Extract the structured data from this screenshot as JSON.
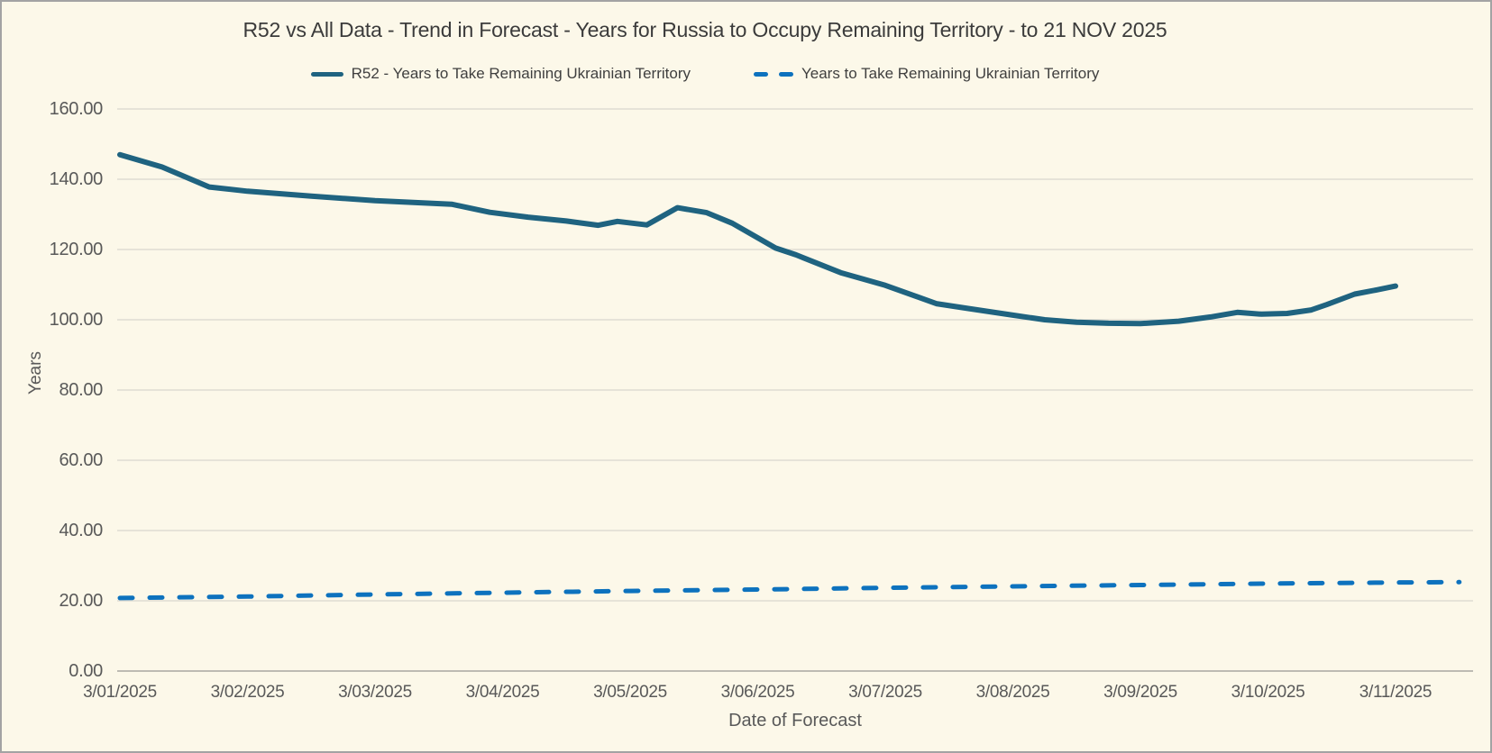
{
  "title": "R52 vs All Data  - Trend in Forecast - Years for Russia to Occupy Remaining Territory - to 21 NOV 2025",
  "legend": [
    {
      "label": "R52 - Years to Take Remaining Ukrainian Territory",
      "style": "solid",
      "color": "#1F6380"
    },
    {
      "label": "Years to Take Remaining Ukrainian Territory",
      "style": "dashed",
      "color": "#0D72BE"
    }
  ],
  "colors": {
    "background": "#FCF8E9",
    "frame_border": "#A3A3A3",
    "grid": "#D8D6CE",
    "axis_line": "#BDBBB3",
    "tick_text": "#595959",
    "title_text": "#3B3B3B",
    "legend_text": "#3F3F3F",
    "r52_line": "#1F6380",
    "all_data_line": "#0D72BE"
  },
  "chart_data": {
    "type": "line",
    "title": "R52 vs All Data  - Trend in Forecast - Years for Russia to Occupy Remaining Territory - to 21 NOV 2025",
    "xlabel": "Date of Forecast",
    "ylabel": "Years",
    "ylim": [
      0,
      160
    ],
    "ytick_step": 20,
    "y_tick_labels": [
      "0.00",
      "20.00",
      "40.00",
      "60.00",
      "80.00",
      "100.00",
      "120.00",
      "140.00",
      "160.00"
    ],
    "grid": true,
    "legend_position": "top",
    "categories": [
      "3/01/2025",
      "3/02/2025",
      "3/03/2025",
      "3/04/2025",
      "3/05/2025",
      "3/06/2025",
      "3/07/2025",
      "3/08/2025",
      "3/09/2025",
      "3/10/2025",
      "3/11/2025"
    ],
    "x_unit": "tick index: 0 = 3/01/2025 ... 10 = 3/11/2025 (fractional = between labeled ticks)",
    "series": [
      {
        "name": "R52 - Years to Take Remaining Ukrainian Territory",
        "color": "#1F6380",
        "dash": "solid",
        "stroke_width": 6,
        "points": [
          [
            0,
            147.0
          ],
          [
            0.33,
            143.5
          ],
          [
            0.7,
            137.8
          ],
          [
            1,
            136.6
          ],
          [
            1.5,
            135.2
          ],
          [
            2,
            133.9
          ],
          [
            2.3,
            133.4
          ],
          [
            2.6,
            132.9
          ],
          [
            2.9,
            130.6
          ],
          [
            3.2,
            129.2
          ],
          [
            3.5,
            128.1
          ],
          [
            3.75,
            126.9
          ],
          [
            3.9,
            128.0
          ],
          [
            4.13,
            127.0
          ],
          [
            4.37,
            131.9
          ],
          [
            4.6,
            130.5
          ],
          [
            4.8,
            127.5
          ],
          [
            5.14,
            120.4
          ],
          [
            5.3,
            118.5
          ],
          [
            5.65,
            113.4
          ],
          [
            6,
            109.8
          ],
          [
            6.4,
            104.6
          ],
          [
            6.65,
            103.2
          ],
          [
            7,
            101.3
          ],
          [
            7.25,
            100.0
          ],
          [
            7.5,
            99.3
          ],
          [
            7.75,
            99.0
          ],
          [
            8,
            98.9
          ],
          [
            8.3,
            99.6
          ],
          [
            8.55,
            100.8
          ],
          [
            8.76,
            102.1
          ],
          [
            8.95,
            101.6
          ],
          [
            9.15,
            101.8
          ],
          [
            9.34,
            102.8
          ],
          [
            9.46,
            104.3
          ],
          [
            9.68,
            107.3
          ],
          [
            9.85,
            108.5
          ],
          [
            10,
            109.6
          ]
        ]
      },
      {
        "name": "Years to Take Remaining Ukrainian Territory",
        "color": "#0D72BE",
        "dash": "dashed",
        "stroke_width": 5,
        "points": [
          [
            0,
            20.8
          ],
          [
            1,
            21.2
          ],
          [
            2,
            21.8
          ],
          [
            3,
            22.3
          ],
          [
            4,
            22.8
          ],
          [
            5,
            23.2
          ],
          [
            6,
            23.7
          ],
          [
            7,
            24.1
          ],
          [
            8,
            24.5
          ],
          [
            9,
            24.9
          ],
          [
            10,
            25.2
          ],
          [
            10.5,
            25.3
          ]
        ]
      }
    ]
  }
}
